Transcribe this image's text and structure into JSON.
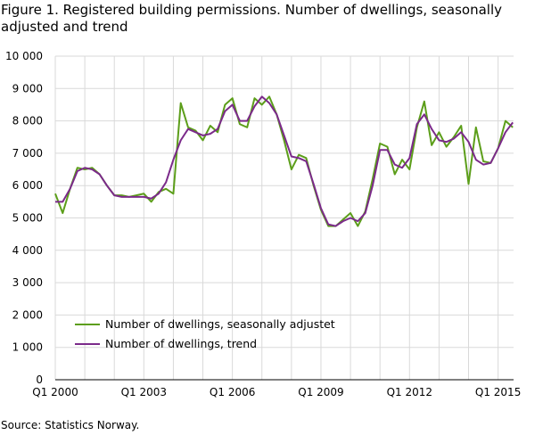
{
  "figure": {
    "title": "Figure 1. Registered building permissions. Number of dwellings, seasonally adjusted and trend",
    "source": "Source: Statistics Norway."
  },
  "chart_data": {
    "type": "line",
    "title": "Figure 1. Registered building permissions. Number of dwellings, seasonally adjusted and trend",
    "xlabel": "",
    "ylabel": "",
    "ylim": [
      0,
      10000
    ],
    "grid": true,
    "legend_position": "bottom-left",
    "y_ticks": [
      "0",
      "1 000",
      "2 000",
      "3 000",
      "4 000",
      "5 000",
      "6 000",
      "7 000",
      "8 000",
      "9 000",
      "10 000"
    ],
    "x_ticks": [
      "Q1 2000",
      "Q1 2003",
      "Q1 2006",
      "Q1 2009",
      "Q1 2012",
      "Q1 2015"
    ],
    "x": [
      "2000Q1",
      "2000Q2",
      "2000Q3",
      "2000Q4",
      "2001Q1",
      "2001Q2",
      "2001Q3",
      "2001Q4",
      "2002Q1",
      "2002Q2",
      "2002Q3",
      "2002Q4",
      "2003Q1",
      "2003Q2",
      "2003Q3",
      "2003Q4",
      "2004Q1",
      "2004Q2",
      "2004Q3",
      "2004Q4",
      "2005Q1",
      "2005Q2",
      "2005Q3",
      "2005Q4",
      "2006Q1",
      "2006Q2",
      "2006Q3",
      "2006Q4",
      "2007Q1",
      "2007Q2",
      "2007Q3",
      "2007Q4",
      "2008Q1",
      "2008Q2",
      "2008Q3",
      "2008Q4",
      "2009Q1",
      "2009Q2",
      "2009Q3",
      "2009Q4",
      "2010Q1",
      "2010Q2",
      "2010Q3",
      "2010Q4",
      "2011Q1",
      "2011Q2",
      "2011Q3",
      "2011Q4",
      "2012Q1",
      "2012Q2",
      "2012Q3",
      "2012Q4",
      "2013Q1",
      "2013Q2",
      "2013Q3",
      "2013Q4",
      "2014Q1",
      "2014Q2",
      "2014Q3",
      "2014Q4",
      "2015Q1",
      "2015Q2",
      "2015Q3"
    ],
    "series": [
      {
        "name": "Number of dwellings, seasonally adjustet",
        "color": "#5c9e1a",
        "values": [
          5750,
          5150,
          5900,
          6550,
          6500,
          6550,
          6350,
          6000,
          5700,
          5700,
          5650,
          5700,
          5750,
          5500,
          5800,
          5900,
          5750,
          8550,
          7800,
          7700,
          7400,
          7850,
          7650,
          8500,
          8700,
          7900,
          7800,
          8700,
          8500,
          8750,
          8200,
          7400,
          6500,
          6950,
          6850,
          6000,
          5250,
          4750,
          4750,
          4950,
          5150,
          4750,
          5200,
          6200,
          7300,
          7200,
          6350,
          6800,
          6500,
          7800,
          8600,
          7250,
          7650,
          7200,
          7500,
          7850,
          6050,
          7800,
          6750,
          6700,
          7150,
          8000,
          7800
        ]
      },
      {
        "name": "Number of dwellings, trend",
        "color": "#7b2a8a",
        "values": [
          5500,
          5500,
          5900,
          6450,
          6550,
          6500,
          6350,
          6000,
          5700,
          5650,
          5650,
          5650,
          5650,
          5600,
          5750,
          6100,
          6800,
          7400,
          7750,
          7650,
          7550,
          7600,
          7750,
          8300,
          8500,
          8000,
          8000,
          8450,
          8750,
          8550,
          8200,
          7550,
          6900,
          6850,
          6750,
          6050,
          5300,
          4800,
          4750,
          4900,
          5000,
          4900,
          5150,
          6000,
          7100,
          7100,
          6650,
          6550,
          6850,
          7900,
          8200,
          7750,
          7400,
          7350,
          7450,
          7650,
          7350,
          6800,
          6650,
          6700,
          7150,
          7650,
          7950
        ]
      }
    ]
  }
}
